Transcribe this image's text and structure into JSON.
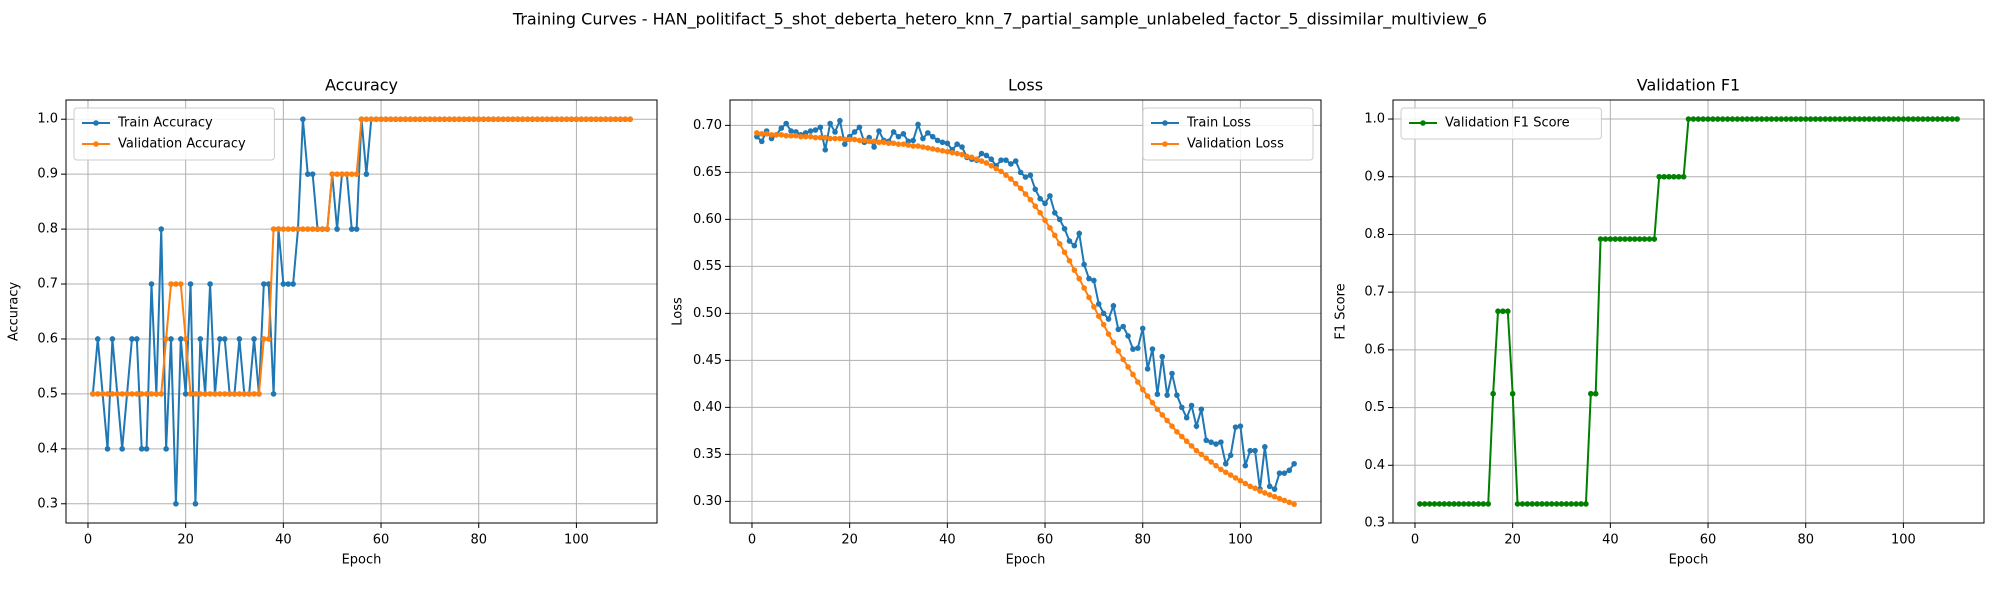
{
  "title": "Training Curves - HAN_politifact_5_shot_deberta_hetero_knn_7_partial_sample_unlabeled_factor_5_dissimilar_multiview_6",
  "chart_data": [
    {
      "type": "line",
      "title": "Accuracy",
      "x_label": "Epoch",
      "y_label": "Accuracy",
      "legend": "upper left",
      "grid": true,
      "x": [
        1,
        2,
        3,
        4,
        5,
        6,
        7,
        8,
        9,
        10,
        11,
        12,
        13,
        14,
        15,
        16,
        17,
        18,
        19,
        20,
        21,
        22,
        23,
        24,
        25,
        26,
        27,
        28,
        29,
        30,
        31,
        32,
        33,
        34,
        35,
        36,
        37,
        38,
        39,
        40,
        41,
        42,
        43,
        44,
        45,
        46,
        47,
        48,
        49,
        50,
        51,
        52,
        53,
        54,
        55,
        56,
        57,
        58,
        59,
        60,
        61,
        62,
        63,
        64,
        65,
        66,
        67,
        68,
        69,
        70,
        71,
        72,
        73,
        74,
        75,
        76,
        77,
        78,
        79,
        80,
        81,
        82,
        83,
        84,
        85,
        86,
        87,
        88,
        89,
        90,
        91,
        92,
        93,
        94,
        95,
        96,
        97,
        98,
        99,
        100,
        101,
        102,
        103,
        104,
        105,
        106,
        107,
        108,
        109,
        110,
        111
      ],
      "xlim": [
        -4.5,
        116.5
      ],
      "xticks": [
        0,
        20,
        40,
        60,
        80,
        100
      ],
      "ylim": [
        0.265,
        1.035
      ],
      "yticks": [
        0.3,
        0.4,
        0.5,
        0.6,
        0.7,
        0.8,
        0.9,
        {
          "value": 1,
          "label": "1.0"
        }
      ],
      "series": [
        {
          "name": "Train Accuracy",
          "color": "#1f77b4",
          "values": [
            0.5,
            0.6,
            0.5,
            0.4,
            0.6,
            0.5,
            0.4,
            0.5,
            0.6,
            0.6,
            0.4,
            0.4,
            0.7,
            0.5,
            0.8,
            0.4,
            0.6,
            0.3,
            0.6,
            0.5,
            0.7,
            0.3,
            0.6,
            0.5,
            0.7,
            0.5,
            0.6,
            0.6,
            0.5,
            0.5,
            0.6,
            0.5,
            0.5,
            0.6,
            0.5,
            0.7,
            0.7,
            0.5,
            0.8,
            0.7,
            0.7,
            0.7,
            0.8,
            1,
            0.9,
            0.9,
            0.8,
            0.8,
            0.8,
            0.9,
            0.8,
            0.9,
            0.9,
            0.8,
            0.8,
            1,
            0.9,
            1,
            1,
            1,
            1,
            1,
            1,
            1,
            1,
            1,
            1,
            1,
            1,
            1,
            1,
            1,
            1,
            1,
            1,
            1,
            1,
            1,
            1,
            1,
            1,
            1,
            1,
            1,
            1,
            1,
            1,
            1,
            1,
            1,
            1,
            1,
            1,
            1,
            1,
            1,
            1,
            1,
            1,
            1,
            1,
            1,
            1,
            1,
            1,
            1,
            1,
            1,
            1,
            1,
            1
          ]
        },
        {
          "name": "Validation Accuracy",
          "color": "#ff7f0e",
          "values": [
            0.5,
            0.5,
            0.5,
            0.5,
            0.5,
            0.5,
            0.5,
            0.5,
            0.5,
            0.5,
            0.5,
            0.5,
            0.5,
            0.5,
            0.5,
            0.6,
            0.7,
            0.7,
            0.7,
            0.6,
            0.5,
            0.5,
            0.5,
            0.5,
            0.5,
            0.5,
            0.5,
            0.5,
            0.5,
            0.5,
            0.5,
            0.5,
            0.5,
            0.5,
            0.5,
            0.6,
            0.6,
            0.8,
            0.8,
            0.8,
            0.8,
            0.8,
            0.8,
            0.8,
            0.8,
            0.8,
            0.8,
            0.8,
            0.8,
            0.9,
            0.9,
            0.9,
            0.9,
            0.9,
            0.9,
            1,
            1,
            1,
            1,
            1,
            1,
            1,
            1,
            1,
            1,
            1,
            1,
            1,
            1,
            1,
            1,
            1,
            1,
            1,
            1,
            1,
            1,
            1,
            1,
            1,
            1,
            1,
            1,
            1,
            1,
            1,
            1,
            1,
            1,
            1,
            1,
            1,
            1,
            1,
            1,
            1,
            1,
            1,
            1,
            1,
            1,
            1,
            1,
            1,
            1,
            1,
            1,
            1,
            1,
            1,
            1
          ]
        }
      ]
    },
    {
      "type": "line",
      "title": "Loss",
      "x_label": "Epoch",
      "y_label": "Loss",
      "legend": "upper right",
      "grid": true,
      "x": [
        1,
        2,
        3,
        4,
        5,
        6,
        7,
        8,
        9,
        10,
        11,
        12,
        13,
        14,
        15,
        16,
        17,
        18,
        19,
        20,
        21,
        22,
        23,
        24,
        25,
        26,
        27,
        28,
        29,
        30,
        31,
        32,
        33,
        34,
        35,
        36,
        37,
        38,
        39,
        40,
        41,
        42,
        43,
        44,
        45,
        46,
        47,
        48,
        49,
        50,
        51,
        52,
        53,
        54,
        55,
        56,
        57,
        58,
        59,
        60,
        61,
        62,
        63,
        64,
        65,
        66,
        67,
        68,
        69,
        70,
        71,
        72,
        73,
        74,
        75,
        76,
        77,
        78,
        79,
        80,
        81,
        82,
        83,
        84,
        85,
        86,
        87,
        88,
        89,
        90,
        91,
        92,
        93,
        94,
        95,
        96,
        97,
        98,
        99,
        100,
        101,
        102,
        103,
        104,
        105,
        106,
        107,
        108,
        109,
        110,
        111
      ],
      "xlim": [
        -4.5,
        116.5
      ],
      "xticks": [
        0,
        20,
        40,
        60,
        80,
        100
      ],
      "ylim": [
        0.277,
        0.727
      ],
      "yticks": [
        {
          "value": 0.3,
          "label": "0.30"
        },
        0.35,
        {
          "value": 0.4,
          "label": "0.40"
        },
        0.45,
        {
          "value": 0.5,
          "label": "0.50"
        },
        0.55,
        {
          "value": 0.6,
          "label": "0.60"
        },
        0.65,
        {
          "value": 0.7,
          "label": "0.70"
        }
      ],
      "series": [
        {
          "name": "Train Loss",
          "color": "#1f77b4",
          "values": [
            0.688,
            0.683,
            0.694,
            0.686,
            0.69,
            0.697,
            0.702,
            0.694,
            0.693,
            0.69,
            0.692,
            0.694,
            0.695,
            0.698,
            0.674,
            0.702,
            0.693,
            0.705,
            0.68,
            0.688,
            0.693,
            0.698,
            0.682,
            0.687,
            0.677,
            0.694,
            0.684,
            0.683,
            0.693,
            0.688,
            0.691,
            0.683,
            0.684,
            0.701,
            0.686,
            0.692,
            0.688,
            0.684,
            0.682,
            0.681,
            0.674,
            0.68,
            0.677,
            0.666,
            0.664,
            0.663,
            0.67,
            0.668,
            0.664,
            0.657,
            0.663,
            0.663,
            0.659,
            0.662,
            0.65,
            0.645,
            0.647,
            0.632,
            0.622,
            0.617,
            0.625,
            0.607,
            0.6,
            0.59,
            0.577,
            0.572,
            0.585,
            0.552,
            0.537,
            0.535,
            0.51,
            0.5,
            0.494,
            0.508,
            0.483,
            0.486,
            0.476,
            0.462,
            0.463,
            0.484,
            0.441,
            0.462,
            0.414,
            0.454,
            0.413,
            0.436,
            0.413,
            0.4,
            0.389,
            0.402,
            0.38,
            0.398,
            0.365,
            0.363,
            0.361,
            0.363,
            0.34,
            0.349,
            0.379,
            0.38,
            0.338,
            0.354,
            0.354,
            0.313,
            0.358,
            0.316,
            0.313,
            0.33,
            0.33,
            0.333,
            0.34
          ]
        },
        {
          "name": "Validation Loss",
          "color": "#ff7f0e",
          "values": [
            0.692,
            0.691,
            0.691,
            0.69,
            0.69,
            0.69,
            0.689,
            0.689,
            0.689,
            0.688,
            0.688,
            0.688,
            0.687,
            0.687,
            0.687,
            0.686,
            0.686,
            0.686,
            0.685,
            0.685,
            0.685,
            0.684,
            0.684,
            0.683,
            0.683,
            0.682,
            0.682,
            0.681,
            0.681,
            0.68,
            0.68,
            0.679,
            0.678,
            0.678,
            0.677,
            0.676,
            0.675,
            0.674,
            0.673,
            0.672,
            0.671,
            0.67,
            0.669,
            0.667,
            0.666,
            0.664,
            0.662,
            0.66,
            0.657,
            0.654,
            0.651,
            0.647,
            0.643,
            0.638,
            0.633,
            0.627,
            0.621,
            0.614,
            0.607,
            0.599,
            0.591,
            0.583,
            0.574,
            0.565,
            0.556,
            0.546,
            0.537,
            0.527,
            0.517,
            0.507,
            0.497,
            0.488,
            0.478,
            0.469,
            0.46,
            0.451,
            0.443,
            0.435,
            0.427,
            0.419,
            0.412,
            0.405,
            0.398,
            0.392,
            0.386,
            0.38,
            0.374,
            0.369,
            0.364,
            0.359,
            0.354,
            0.35,
            0.346,
            0.342,
            0.338,
            0.334,
            0.331,
            0.328,
            0.325,
            0.322,
            0.319,
            0.316,
            0.314,
            0.311,
            0.309,
            0.307,
            0.305,
            0.303,
            0.301,
            0.299,
            0.297
          ]
        }
      ]
    },
    {
      "type": "line",
      "title": "Validation F1",
      "x_label": "Epoch",
      "y_label": "F1 Score",
      "legend": "upper left",
      "grid": true,
      "x": [
        1,
        2,
        3,
        4,
        5,
        6,
        7,
        8,
        9,
        10,
        11,
        12,
        13,
        14,
        15,
        16,
        17,
        18,
        19,
        20,
        21,
        22,
        23,
        24,
        25,
        26,
        27,
        28,
        29,
        30,
        31,
        32,
        33,
        34,
        35,
        36,
        37,
        38,
        39,
        40,
        41,
        42,
        43,
        44,
        45,
        46,
        47,
        48,
        49,
        50,
        51,
        52,
        53,
        54,
        55,
        56,
        57,
        58,
        59,
        60,
        61,
        62,
        63,
        64,
        65,
        66,
        67,
        68,
        69,
        70,
        71,
        72,
        73,
        74,
        75,
        76,
        77,
        78,
        79,
        80,
        81,
        82,
        83,
        84,
        85,
        86,
        87,
        88,
        89,
        90,
        91,
        92,
        93,
        94,
        95,
        96,
        97,
        98,
        99,
        100,
        101,
        102,
        103,
        104,
        105,
        106,
        107,
        108,
        109,
        110,
        111
      ],
      "xlim": [
        -4.5,
        116.5
      ],
      "xticks": [
        0,
        20,
        40,
        60,
        80,
        100
      ],
      "ylim": [
        0.3,
        1.033
      ],
      "yticks": [
        0.3,
        0.4,
        0.5,
        0.6,
        0.7,
        0.8,
        0.9,
        {
          "value": 1,
          "label": "1.0"
        }
      ],
      "series": [
        {
          "name": "Validation F1 Score",
          "color": "#008000",
          "values": [
            0.333,
            0.333,
            0.333,
            0.333,
            0.333,
            0.333,
            0.333,
            0.333,
            0.333,
            0.333,
            0.333,
            0.333,
            0.333,
            0.333,
            0.333,
            0.524,
            0.667,
            0.667,
            0.667,
            0.524,
            0.333,
            0.333,
            0.333,
            0.333,
            0.333,
            0.333,
            0.333,
            0.333,
            0.333,
            0.333,
            0.333,
            0.333,
            0.333,
            0.333,
            0.333,
            0.524,
            0.524,
            0.792,
            0.792,
            0.792,
            0.792,
            0.792,
            0.792,
            0.792,
            0.792,
            0.792,
            0.792,
            0.792,
            0.792,
            0.9,
            0.9,
            0.9,
            0.9,
            0.9,
            0.9,
            1,
            1,
            1,
            1,
            1,
            1,
            1,
            1,
            1,
            1,
            1,
            1,
            1,
            1,
            1,
            1,
            1,
            1,
            1,
            1,
            1,
            1,
            1,
            1,
            1,
            1,
            1,
            1,
            1,
            1,
            1,
            1,
            1,
            1,
            1,
            1,
            1,
            1,
            1,
            1,
            1,
            1,
            1,
            1,
            1,
            1,
            1,
            1,
            1,
            1,
            1,
            1,
            1,
            1,
            1,
            1
          ]
        }
      ]
    }
  ]
}
